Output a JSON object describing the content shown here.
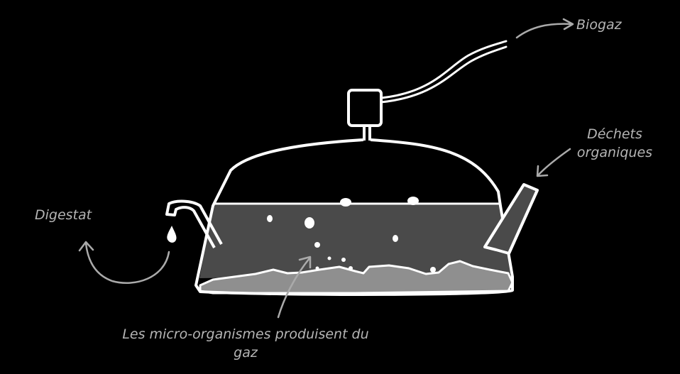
{
  "labels": {
    "biogaz": "Biogaz",
    "dechets_line1": "Déchets",
    "dechets_line2": "organiques",
    "digestat": "Digestat",
    "micro_line1": "Les micro-organismes produisent du",
    "micro_line2": "gaz"
  },
  "colors": {
    "background": "#000000",
    "outline": "#ffffff",
    "liquid": "#4a4a4a",
    "sediment": "#8f8f8f",
    "arrow": "#aaaaaa",
    "label": "#b5b5b5"
  }
}
